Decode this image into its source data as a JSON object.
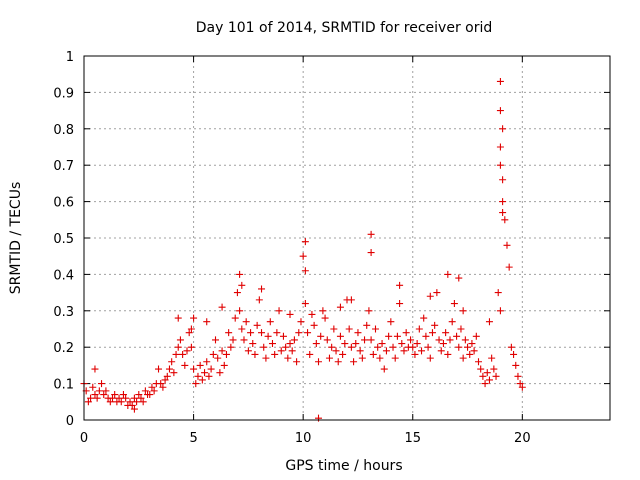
{
  "chart_data": {
    "type": "scatter",
    "title": "Day 101 of 2014, SRMTID for receiver orid",
    "xlabel": "GPS time / hours",
    "ylabel": "SRMTID / TECUs",
    "xlim": [
      0,
      24
    ],
    "ylim": [
      0,
      1
    ],
    "grid": true,
    "x_ticks": [
      0,
      5,
      10,
      15,
      20
    ],
    "x_tick_labels": [
      "0",
      "5",
      "10",
      "15",
      "20"
    ],
    "y_ticks": [
      0,
      0.1,
      0.2,
      0.3,
      0.4,
      0.5,
      0.6,
      0.7,
      0.8,
      0.9,
      1
    ],
    "y_tick_labels": [
      "0",
      "0.1",
      "0.2",
      "0.3",
      "0.4",
      "0.5",
      "0.6",
      "0.7",
      "0.8",
      "0.9",
      "1"
    ],
    "marker": "+",
    "color": "#e00000",
    "series": [
      {
        "name": "SRMTID",
        "x": [
          0.0,
          0.1,
          0.2,
          0.3,
          0.4,
          0.5,
          0.6,
          0.7,
          0.8,
          0.9,
          1.0,
          1.1,
          1.2,
          1.3,
          1.4,
          1.5,
          1.6,
          1.7,
          1.8,
          1.9,
          2.0,
          2.1,
          2.2,
          2.3,
          2.4,
          2.5,
          2.6,
          2.7,
          2.8,
          2.9,
          3.0,
          3.1,
          3.2,
          3.3,
          3.4,
          3.5,
          3.6,
          3.7,
          3.8,
          3.9,
          4.0,
          4.1,
          4.2,
          4.3,
          4.4,
          4.5,
          4.6,
          4.7,
          4.8,
          4.9,
          5.0,
          5.1,
          5.2,
          5.3,
          5.4,
          5.5,
          5.6,
          5.7,
          5.8,
          5.9,
          6.0,
          6.1,
          6.2,
          6.3,
          6.4,
          6.5,
          6.6,
          6.7,
          6.8,
          6.9,
          7.0,
          7.1,
          7.2,
          7.3,
          7.4,
          7.5,
          7.6,
          7.7,
          7.8,
          7.9,
          8.0,
          8.1,
          8.2,
          8.3,
          8.4,
          8.5,
          8.6,
          8.7,
          8.8,
          8.9,
          9.0,
          9.1,
          9.2,
          9.3,
          9.4,
          9.5,
          9.6,
          9.7,
          9.8,
          9.9,
          10.0,
          10.1,
          10.2,
          10.3,
          10.4,
          10.5,
          10.6,
          10.7,
          10.8,
          10.9,
          11.0,
          11.1,
          11.2,
          11.3,
          11.4,
          11.5,
          11.6,
          11.7,
          11.8,
          11.9,
          12.0,
          12.1,
          12.2,
          12.3,
          12.4,
          12.5,
          12.6,
          12.7,
          12.8,
          12.9,
          13.0,
          13.1,
          13.2,
          13.3,
          13.4,
          13.5,
          13.6,
          13.7,
          13.8,
          13.9,
          14.0,
          14.1,
          14.2,
          14.3,
          14.4,
          14.5,
          14.6,
          14.7,
          14.8,
          14.9,
          15.0,
          15.1,
          15.2,
          15.3,
          15.4,
          15.5,
          15.6,
          15.7,
          15.8,
          15.9,
          16.0,
          16.1,
          16.2,
          16.3,
          16.4,
          16.5,
          16.6,
          16.7,
          16.8,
          16.9,
          17.0,
          17.1,
          17.2,
          17.3,
          17.4,
          17.5,
          17.6,
          17.7,
          17.8,
          17.9,
          18.0,
          18.1,
          18.2,
          18.3,
          18.4,
          18.5,
          18.6,
          18.7,
          18.8,
          18.9,
          19.0,
          19.0,
          19.0,
          19.0,
          19.0,
          19.1,
          19.2,
          19.3,
          19.4,
          19.5,
          19.6,
          19.7,
          19.8,
          19.9,
          20.0,
          13.1,
          13.1,
          10.1,
          10.1,
          10.7,
          7.1,
          7.2,
          8.1,
          16.6,
          17.1,
          17.3,
          6.3,
          5.0,
          4.9,
          2.3,
          0.5,
          4.3,
          5.6,
          9.4,
          11.7,
          12.2,
          14.4,
          15.8,
          18.5,
          19.1,
          19.1,
          19.1
        ],
        "y": [
          0.1,
          0.08,
          0.05,
          0.06,
          0.09,
          0.07,
          0.06,
          0.08,
          0.1,
          0.07,
          0.08,
          0.06,
          0.05,
          0.06,
          0.07,
          0.05,
          0.06,
          0.05,
          0.07,
          0.06,
          0.04,
          0.05,
          0.04,
          0.06,
          0.05,
          0.07,
          0.06,
          0.05,
          0.08,
          0.07,
          0.07,
          0.09,
          0.08,
          0.1,
          0.14,
          0.1,
          0.09,
          0.11,
          0.12,
          0.14,
          0.16,
          0.13,
          0.18,
          0.2,
          0.22,
          0.18,
          0.15,
          0.19,
          0.24,
          0.2,
          0.14,
          0.1,
          0.12,
          0.15,
          0.11,
          0.13,
          0.16,
          0.12,
          0.14,
          0.18,
          0.22,
          0.17,
          0.13,
          0.19,
          0.15,
          0.18,
          0.24,
          0.2,
          0.22,
          0.28,
          0.35,
          0.3,
          0.25,
          0.22,
          0.27,
          0.19,
          0.24,
          0.21,
          0.18,
          0.26,
          0.33,
          0.24,
          0.2,
          0.17,
          0.23,
          0.27,
          0.21,
          0.18,
          0.24,
          0.3,
          0.19,
          0.23,
          0.2,
          0.17,
          0.21,
          0.19,
          0.22,
          0.16,
          0.24,
          0.27,
          0.45,
          0.32,
          0.24,
          0.18,
          0.29,
          0.26,
          0.21,
          0.16,
          0.23,
          0.3,
          0.28,
          0.22,
          0.17,
          0.2,
          0.25,
          0.19,
          0.16,
          0.23,
          0.18,
          0.21,
          0.33,
          0.25,
          0.2,
          0.16,
          0.21,
          0.24,
          0.19,
          0.17,
          0.22,
          0.26,
          0.3,
          0.22,
          0.18,
          0.25,
          0.2,
          0.17,
          0.21,
          0.14,
          0.19,
          0.23,
          0.27,
          0.2,
          0.17,
          0.23,
          0.32,
          0.21,
          0.19,
          0.24,
          0.2,
          0.22,
          0.2,
          0.18,
          0.21,
          0.25,
          0.19,
          0.28,
          0.23,
          0.2,
          0.17,
          0.24,
          0.26,
          0.35,
          0.22,
          0.19,
          0.21,
          0.24,
          0.18,
          0.22,
          0.27,
          0.32,
          0.23,
          0.2,
          0.25,
          0.17,
          0.22,
          0.2,
          0.18,
          0.21,
          0.19,
          0.23,
          0.16,
          0.14,
          0.12,
          0.1,
          0.13,
          0.11,
          0.17,
          0.14,
          0.12,
          0.35,
          0.3,
          0.93,
          0.85,
          0.75,
          0.7,
          0.6,
          0.55,
          0.48,
          0.42,
          0.2,
          0.18,
          0.15,
          0.12,
          0.1,
          0.09,
          0.51,
          0.46,
          0.49,
          0.41,
          0.005,
          0.4,
          0.37,
          0.36,
          0.4,
          0.39,
          0.3,
          0.31,
          0.28,
          0.25,
          0.03,
          0.14,
          0.28,
          0.27,
          0.29,
          0.31,
          0.33,
          0.37,
          0.34,
          0.27,
          0.66,
          0.8,
          0.57
        ]
      }
    ]
  }
}
